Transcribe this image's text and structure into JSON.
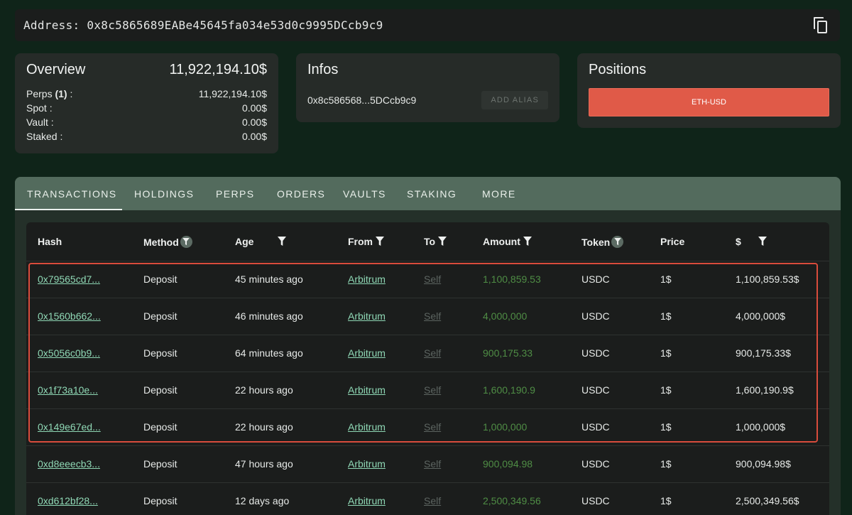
{
  "address": {
    "label": "Address:",
    "value": "0x8c5865689EABe45645fa034e53d0c9995DCcb9c9"
  },
  "overview": {
    "title": "Overview",
    "total": "11,922,194.10$",
    "rows": [
      {
        "label_pre": "Perps ",
        "label_bold": "(1)",
        "label_post": " :",
        "value": "11,922,194.10$"
      },
      {
        "label_pre": "Spot :",
        "label_bold": "",
        "label_post": "",
        "value": "0.00$"
      },
      {
        "label_pre": "Vault :",
        "label_bold": "",
        "label_post": "",
        "value": "0.00$"
      },
      {
        "label_pre": "Staked :",
        "label_bold": "",
        "label_post": "",
        "value": "0.00$"
      }
    ]
  },
  "infos": {
    "title": "Infos",
    "short_address": "0x8c586568...5DCcb9c9",
    "alias_button": "ADD ALIAS"
  },
  "positions": {
    "title": "Positions",
    "items": [
      "ETH-USD"
    ]
  },
  "tabs": [
    "TRANSACTIONS",
    "HOLDINGS",
    "PERPS",
    "ORDERS",
    "VAULTS",
    "STAKING",
    "MORE"
  ],
  "table": {
    "headers": [
      "Hash",
      "Method",
      "Age",
      "From",
      "To",
      "Amount",
      "Token",
      "Price",
      "$"
    ],
    "rows": [
      {
        "hash": "0x79565cd7...",
        "method": "Deposit",
        "age": "45 minutes ago",
        "from": "Arbitrum",
        "to": "Self",
        "amount": "1,100,859.53",
        "token": "USDC",
        "price": "1$",
        "usd": "1,100,859.53$"
      },
      {
        "hash": "0x1560b662...",
        "method": "Deposit",
        "age": "46 minutes ago",
        "from": "Arbitrum",
        "to": "Self",
        "amount": "4,000,000",
        "token": "USDC",
        "price": "1$",
        "usd": "4,000,000$"
      },
      {
        "hash": "0x5056c0b9...",
        "method": "Deposit",
        "age": "64 minutes ago",
        "from": "Arbitrum",
        "to": "Self",
        "amount": "900,175.33",
        "token": "USDC",
        "price": "1$",
        "usd": "900,175.33$"
      },
      {
        "hash": "0x1f73a10e...",
        "method": "Deposit",
        "age": "22 hours ago",
        "from": "Arbitrum",
        "to": "Self",
        "amount": "1,600,190.9",
        "token": "USDC",
        "price": "1$",
        "usd": "1,600,190.9$"
      },
      {
        "hash": "0x149e67ed...",
        "method": "Deposit",
        "age": "22 hours ago",
        "from": "Arbitrum",
        "to": "Self",
        "amount": "1,000,000",
        "token": "USDC",
        "price": "1$",
        "usd": "1,000,000$"
      },
      {
        "hash": "0xd8eeecb3...",
        "method": "Deposit",
        "age": "47 hours ago",
        "from": "Arbitrum",
        "to": "Self",
        "amount": "900,094.98",
        "token": "USDC",
        "price": "1$",
        "usd": "900,094.98$"
      },
      {
        "hash": "0xd612bf28...",
        "method": "Deposit",
        "age": "12 days ago",
        "from": "Arbitrum",
        "to": "Self",
        "amount": "2,500,349.56",
        "token": "USDC",
        "price": "1$",
        "usd": "2,500,349.56$"
      }
    ]
  },
  "colors": {
    "background": "#0f2419",
    "card": "#262b28",
    "tab_bar": "#536b5d",
    "link": "#8fd8b5",
    "amount": "#4f8d45",
    "position_button": "#e05a48",
    "highlight_border": "#d94c3c"
  },
  "icons": {
    "copy": "copy-icon",
    "filter": "filter-icon"
  }
}
